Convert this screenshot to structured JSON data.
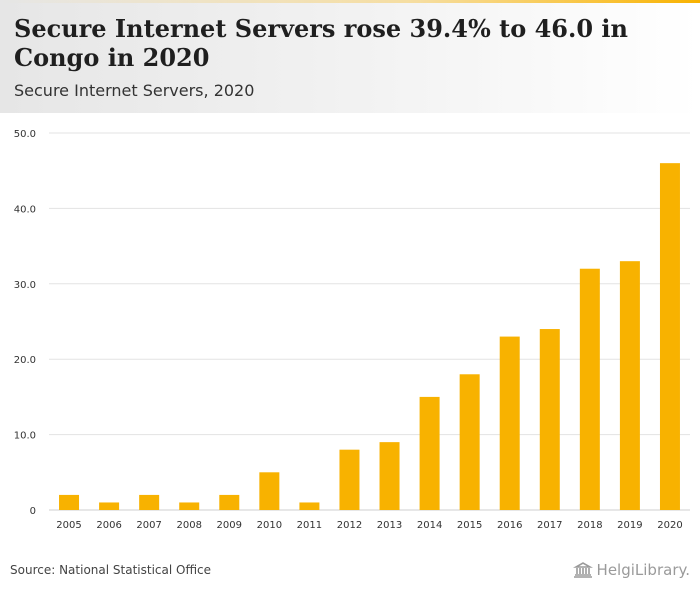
{
  "header": {
    "title": "Secure Internet Servers rose 39.4% to 46.0 in Congo in 2020",
    "subtitle": "Secure Internet Servers, 2020"
  },
  "footer": {
    "source": "Source: National Statistical Office",
    "logo_text": "HelgiLibrary."
  },
  "colors": {
    "bar": "#f8b200",
    "grid": "#e3e3e3",
    "axis_text": "#333333"
  },
  "chart_data": {
    "type": "bar",
    "title": "Secure Internet Servers rose 39.4% to 46.0 in Congo in 2020",
    "subtitle": "Secure Internet Servers, 2020",
    "xlabel": "",
    "ylabel": "",
    "categories": [
      "2005",
      "2006",
      "2007",
      "2008",
      "2009",
      "2010",
      "2011",
      "2012",
      "2013",
      "2014",
      "2015",
      "2016",
      "2017",
      "2018",
      "2019",
      "2020"
    ],
    "values": [
      2,
      1,
      2,
      1,
      2,
      5,
      1,
      8,
      9,
      15,
      18,
      23,
      24,
      32,
      33,
      46
    ],
    "ylim": [
      0,
      50
    ],
    "yticks": [
      0,
      10,
      20,
      30,
      40,
      50
    ],
    "ytick_labels": [
      "0",
      "10.0",
      "20.0",
      "30.0",
      "40.0",
      "50.0"
    ],
    "grid": true,
    "legend": "none"
  }
}
